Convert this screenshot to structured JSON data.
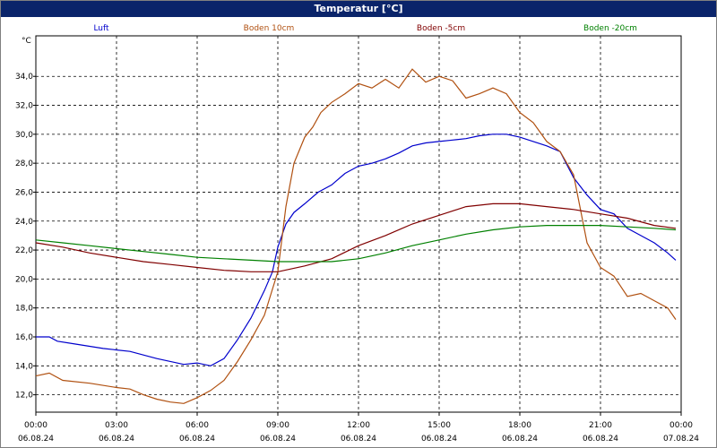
{
  "window": {
    "title": "Temperatur [°C]"
  },
  "chart_data": {
    "type": "line",
    "title": "Temperatur [°C]",
    "ylabel": "°C",
    "xlabel": "",
    "ylim": [
      10.8,
      36.8
    ],
    "xlim": [
      0,
      24
    ],
    "y_ticks": [
      12.0,
      14.0,
      16.0,
      18.0,
      20.0,
      22.0,
      24.0,
      26.0,
      28.0,
      30.0,
      32.0,
      34.0
    ],
    "y_tick_labels": [
      "12,0",
      "14,0",
      "16,0",
      "18,0",
      "20,0",
      "22,0",
      "24,0",
      "26,0",
      "28,0",
      "30,0",
      "32,0",
      "34,0"
    ],
    "x_ticks": [
      {
        "hour": 0,
        "time": "00:00",
        "date": "06.08.24"
      },
      {
        "hour": 3,
        "time": "03:00",
        "date": "06.08.24"
      },
      {
        "hour": 6,
        "time": "06:00",
        "date": "06.08.24"
      },
      {
        "hour": 9,
        "time": "09:00",
        "date": "06.08.24"
      },
      {
        "hour": 12,
        "time": "12:00",
        "date": "06.08.24"
      },
      {
        "hour": 15,
        "time": "15:00",
        "date": "06.08.24"
      },
      {
        "hour": 18,
        "time": "18:00",
        "date": "06.08.24"
      },
      {
        "hour": 21,
        "time": "21:00",
        "date": "06.08.24"
      },
      {
        "hour": 24,
        "time": "00:00",
        "date": "07.08.24"
      }
    ],
    "grid": true,
    "legend_position": "top",
    "series": [
      {
        "name": "Luft",
        "color": "#0000cc",
        "x": [
          0,
          0.5,
          0.8,
          1.5,
          2.5,
          3.5,
          4.5,
          5.5,
          6.0,
          6.5,
          7.0,
          7.5,
          8.0,
          8.5,
          8.8,
          9.0,
          9.3,
          9.6,
          10.0,
          10.5,
          11.0,
          11.5,
          12.0,
          12.5,
          13.0,
          13.5,
          14.0,
          14.5,
          15.0,
          15.5,
          16.0,
          16.5,
          17.0,
          17.5,
          18.0,
          18.5,
          19.0,
          19.5,
          20.0,
          20.5,
          21.0,
          21.5,
          22.0,
          22.5,
          23.0,
          23.5,
          23.8
        ],
        "y": [
          16.0,
          16.0,
          15.7,
          15.5,
          15.2,
          15.0,
          14.5,
          14.1,
          14.2,
          14.0,
          14.5,
          15.8,
          17.3,
          19.2,
          20.5,
          22.2,
          23.8,
          24.6,
          25.2,
          26.0,
          26.5,
          27.3,
          27.8,
          28.0,
          28.3,
          28.7,
          29.2,
          29.4,
          29.5,
          29.6,
          29.7,
          29.9,
          30.0,
          30.0,
          29.8,
          29.5,
          29.2,
          28.8,
          27.0,
          25.8,
          24.8,
          24.5,
          23.5,
          23.0,
          22.5,
          21.8,
          21.3
        ]
      },
      {
        "name": "Boden 10cm",
        "color": "#b05010",
        "x": [
          0,
          0.5,
          1.0,
          2.0,
          3.0,
          3.5,
          4.0,
          4.5,
          5.0,
          5.5,
          6.0,
          6.5,
          7.0,
          7.5,
          8.0,
          8.5,
          9.0,
          9.3,
          9.6,
          10.0,
          10.3,
          10.6,
          11.0,
          11.5,
          12.0,
          12.5,
          13.0,
          13.5,
          14.0,
          14.5,
          15.0,
          15.5,
          16.0,
          16.5,
          17.0,
          17.5,
          18.0,
          18.5,
          19.0,
          19.5,
          20.0,
          20.5,
          21.0,
          21.5,
          22.0,
          22.5,
          23.0,
          23.5,
          23.8
        ],
        "y": [
          13.3,
          13.5,
          13.0,
          12.8,
          12.5,
          12.4,
          12.0,
          11.7,
          11.5,
          11.4,
          11.8,
          12.3,
          13.0,
          14.3,
          15.8,
          17.5,
          20.5,
          25.0,
          28.0,
          29.8,
          30.5,
          31.5,
          32.2,
          32.8,
          33.5,
          33.2,
          33.8,
          33.2,
          34.5,
          33.6,
          34.0,
          33.7,
          32.5,
          32.8,
          33.2,
          32.8,
          31.5,
          30.8,
          29.5,
          28.8,
          27.2,
          22.5,
          20.8,
          20.2,
          18.8,
          19.0,
          18.5,
          18.0,
          17.2
        ]
      },
      {
        "name": "Boden -5cm",
        "color": "#800000",
        "x": [
          0,
          1,
          2,
          3,
          4,
          5,
          6,
          7,
          8,
          9,
          10,
          11,
          12,
          13,
          14,
          15,
          16,
          17,
          18,
          19,
          20,
          21,
          22,
          23,
          23.8
        ],
        "y": [
          22.5,
          22.2,
          21.8,
          21.5,
          21.2,
          21.0,
          20.8,
          20.6,
          20.5,
          20.5,
          20.9,
          21.4,
          22.3,
          23.0,
          23.8,
          24.4,
          25.0,
          25.2,
          25.2,
          25.0,
          24.8,
          24.5,
          24.2,
          23.7,
          23.5
        ]
      },
      {
        "name": "Boden -20cm",
        "color": "#008000",
        "x": [
          0,
          1,
          2,
          3,
          4,
          5,
          6,
          7,
          8,
          9,
          10,
          11,
          12,
          13,
          14,
          15,
          16,
          17,
          18,
          19,
          20,
          21,
          22,
          23,
          23.8
        ],
        "y": [
          22.7,
          22.5,
          22.3,
          22.1,
          21.9,
          21.7,
          21.5,
          21.4,
          21.3,
          21.2,
          21.2,
          21.2,
          21.4,
          21.8,
          22.3,
          22.7,
          23.1,
          23.4,
          23.6,
          23.7,
          23.7,
          23.7,
          23.6,
          23.5,
          23.4
        ]
      }
    ]
  }
}
